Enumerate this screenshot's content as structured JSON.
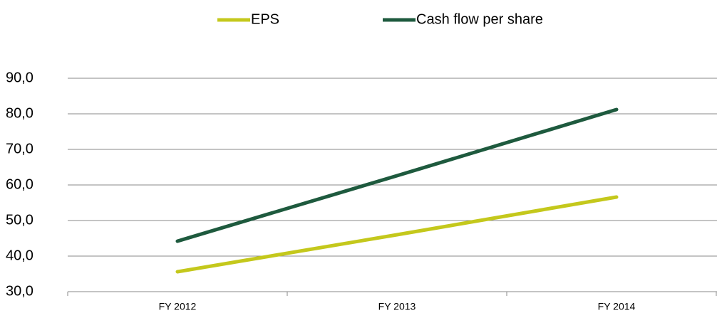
{
  "chart_data": {
    "type": "line",
    "categories": [
      "FY 2012",
      "FY 2013",
      "FY 2014"
    ],
    "series": [
      {
        "name": "EPS",
        "color": "#c4c81c",
        "values": [
          35.6,
          46.0,
          56.6
        ]
      },
      {
        "name": "Cash flow per share",
        "color": "#1e5a3e",
        "values": [
          44.2,
          62.6,
          81.2
        ]
      }
    ],
    "ylim": [
      30,
      90
    ],
    "yticks": [
      {
        "value": 30,
        "label": "30,0"
      },
      {
        "value": 40,
        "label": "40,0"
      },
      {
        "value": 50,
        "label": "50,0"
      },
      {
        "value": 60,
        "label": "60,0"
      },
      {
        "value": 70,
        "label": "70,0"
      },
      {
        "value": 80,
        "label": "80,0"
      },
      {
        "value": 90,
        "label": "90,0"
      }
    ],
    "grid": true,
    "legend": "top"
  }
}
